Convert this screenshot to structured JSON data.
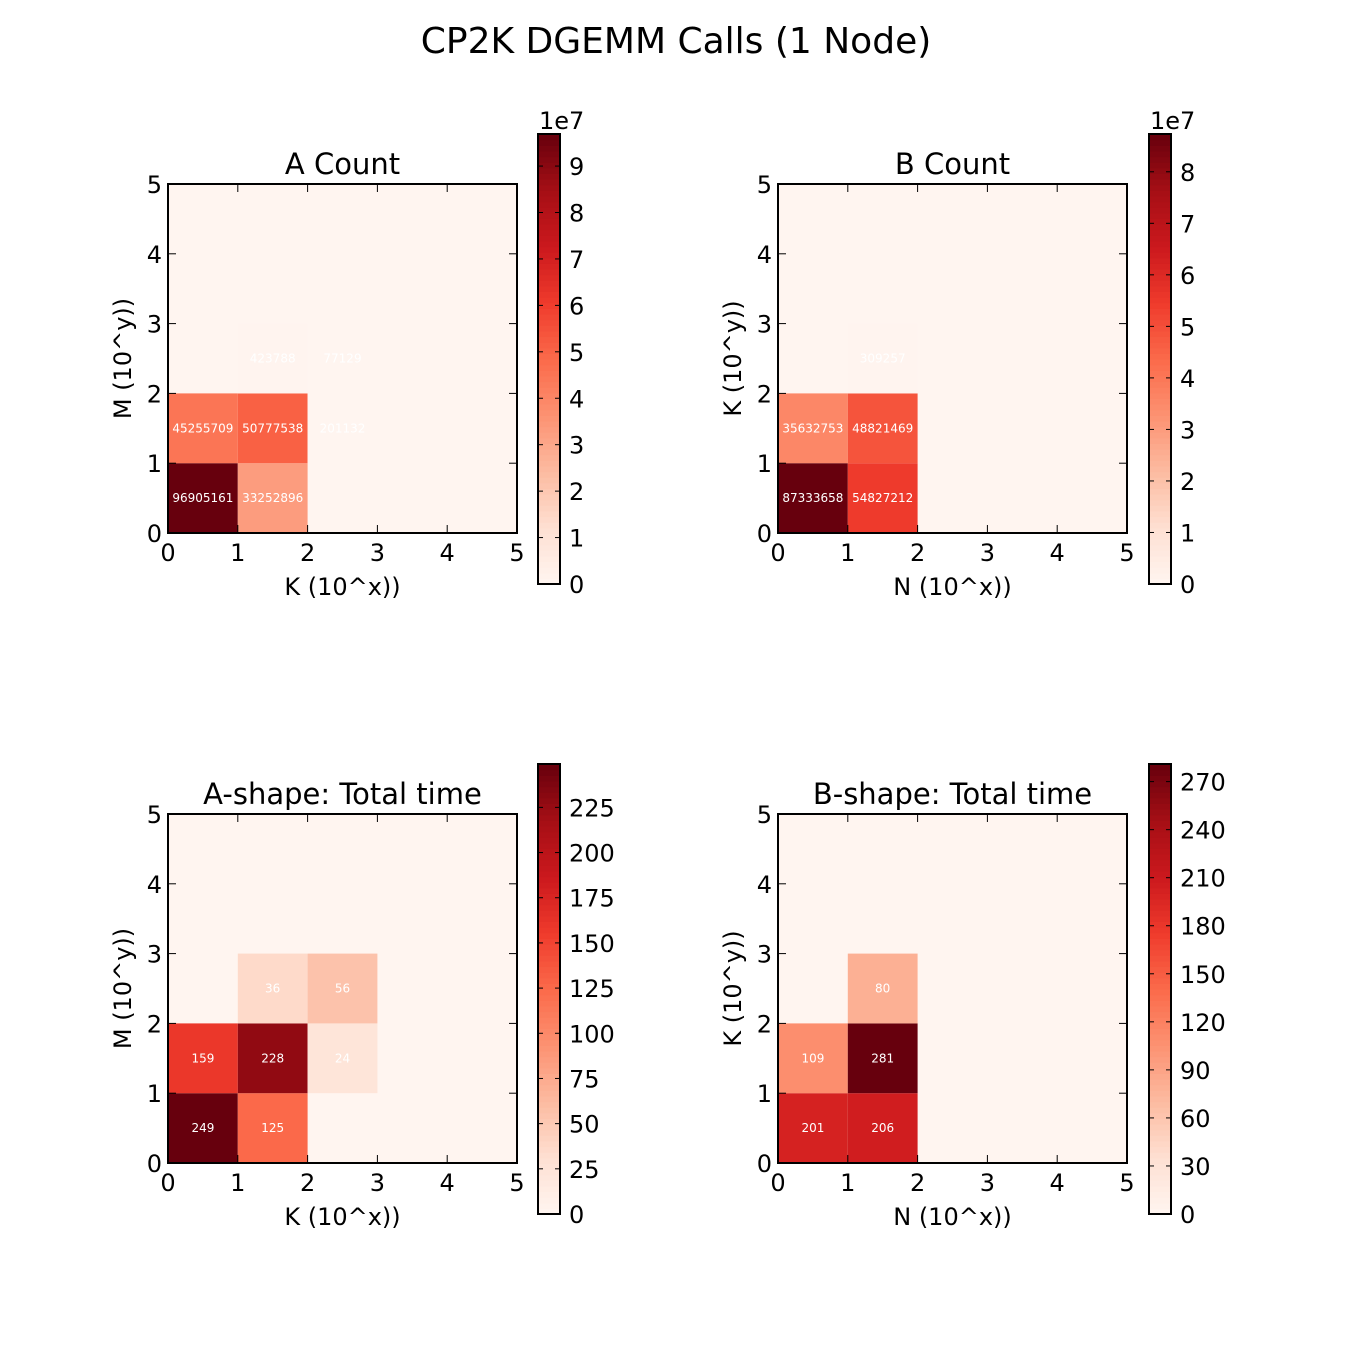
{
  "figure": {
    "suptitle": "CP2K DGEMM Calls (1 Node)"
  },
  "colormap": [
    "#fff5f0",
    "#fee0d2",
    "#fcbba1",
    "#fc9272",
    "#fb6a4a",
    "#ef3b2c",
    "#cb181d",
    "#a50f15",
    "#67000d"
  ],
  "chart_data": [
    {
      "type": "heatmap",
      "title": "A Count",
      "xlabel": "K (10^x))",
      "ylabel": "M (10^y))",
      "xlim": [
        0,
        5
      ],
      "ylim": [
        0,
        5
      ],
      "x_ticks": [
        "0",
        "1",
        "2",
        "3",
        "4",
        "5"
      ],
      "y_ticks": [
        "0",
        "1",
        "2",
        "3",
        "4",
        "5"
      ],
      "cells": [
        {
          "x": 0,
          "y": 0,
          "value": 96905161
        },
        {
          "x": 1,
          "y": 0,
          "value": 33252896
        },
        {
          "x": 0,
          "y": 1,
          "value": 45255709
        },
        {
          "x": 1,
          "y": 1,
          "value": 50777538
        },
        {
          "x": 2,
          "y": 1,
          "value": 201132
        },
        {
          "x": 1,
          "y": 2,
          "value": 423788
        },
        {
          "x": 2,
          "y": 2,
          "value": 77129
        }
      ],
      "colorbar": {
        "vmin": 0,
        "vmax": 96905161,
        "ticks": [
          0,
          10000000,
          20000000,
          30000000,
          40000000,
          50000000,
          60000000,
          70000000,
          80000000,
          90000000
        ],
        "tick_labels": [
          "0",
          "1",
          "2",
          "3",
          "4",
          "5",
          "6",
          "7",
          "8",
          "9"
        ],
        "offset_label": "1e7"
      }
    },
    {
      "type": "heatmap",
      "title": "B Count",
      "xlabel": "N (10^x))",
      "ylabel": "K (10^y))",
      "xlim": [
        0,
        5
      ],
      "ylim": [
        0,
        5
      ],
      "x_ticks": [
        "0",
        "1",
        "2",
        "3",
        "4",
        "5"
      ],
      "y_ticks": [
        "0",
        "1",
        "2",
        "3",
        "4",
        "5"
      ],
      "cells": [
        {
          "x": 0,
          "y": 0,
          "value": 87333658
        },
        {
          "x": 1,
          "y": 0,
          "value": 54827212
        },
        {
          "x": 0,
          "y": 1,
          "value": 35632753
        },
        {
          "x": 1,
          "y": 1,
          "value": 48821469
        },
        {
          "x": 1,
          "y": 2,
          "value": 309257
        }
      ],
      "colorbar": {
        "vmin": 0,
        "vmax": 87333658,
        "ticks": [
          0,
          10000000,
          20000000,
          30000000,
          40000000,
          50000000,
          60000000,
          70000000,
          80000000
        ],
        "tick_labels": [
          "0",
          "1",
          "2",
          "3",
          "4",
          "5",
          "6",
          "7",
          "8"
        ],
        "offset_label": "1e7"
      }
    },
    {
      "type": "heatmap",
      "title": "A-shape: Total time",
      "xlabel": "K (10^x))",
      "ylabel": "M (10^y))",
      "xlim": [
        0,
        5
      ],
      "ylim": [
        0,
        5
      ],
      "x_ticks": [
        "0",
        "1",
        "2",
        "3",
        "4",
        "5"
      ],
      "y_ticks": [
        "0",
        "1",
        "2",
        "3",
        "4",
        "5"
      ],
      "cells": [
        {
          "x": 0,
          "y": 0,
          "value": 249
        },
        {
          "x": 1,
          "y": 0,
          "value": 125
        },
        {
          "x": 0,
          "y": 1,
          "value": 159
        },
        {
          "x": 1,
          "y": 1,
          "value": 228
        },
        {
          "x": 2,
          "y": 1,
          "value": 24
        },
        {
          "x": 1,
          "y": 2,
          "value": 36
        },
        {
          "x": 2,
          "y": 2,
          "value": 56
        }
      ],
      "colorbar": {
        "vmin": 0,
        "vmax": 249,
        "ticks": [
          0,
          25,
          50,
          75,
          100,
          125,
          150,
          175,
          200,
          225
        ],
        "tick_labels": [
          "0",
          "25",
          "50",
          "75",
          "100",
          "125",
          "150",
          "175",
          "200",
          "225"
        ],
        "offset_label": ""
      }
    },
    {
      "type": "heatmap",
      "title": "B-shape: Total time",
      "xlabel": "N (10^x))",
      "ylabel": "K (10^y))",
      "xlim": [
        0,
        5
      ],
      "ylim": [
        0,
        5
      ],
      "x_ticks": [
        "0",
        "1",
        "2",
        "3",
        "4",
        "5"
      ],
      "y_ticks": [
        "0",
        "1",
        "2",
        "3",
        "4",
        "5"
      ],
      "cells": [
        {
          "x": 0,
          "y": 0,
          "value": 201
        },
        {
          "x": 1,
          "y": 0,
          "value": 206
        },
        {
          "x": 0,
          "y": 1,
          "value": 109
        },
        {
          "x": 1,
          "y": 1,
          "value": 281
        },
        {
          "x": 1,
          "y": 2,
          "value": 80
        }
      ],
      "colorbar": {
        "vmin": 0,
        "vmax": 281,
        "ticks": [
          0,
          30,
          60,
          90,
          120,
          150,
          180,
          210,
          240,
          270
        ],
        "tick_labels": [
          "0",
          "30",
          "60",
          "90",
          "120",
          "150",
          "180",
          "210",
          "240",
          "270"
        ],
        "offset_label": ""
      }
    }
  ]
}
